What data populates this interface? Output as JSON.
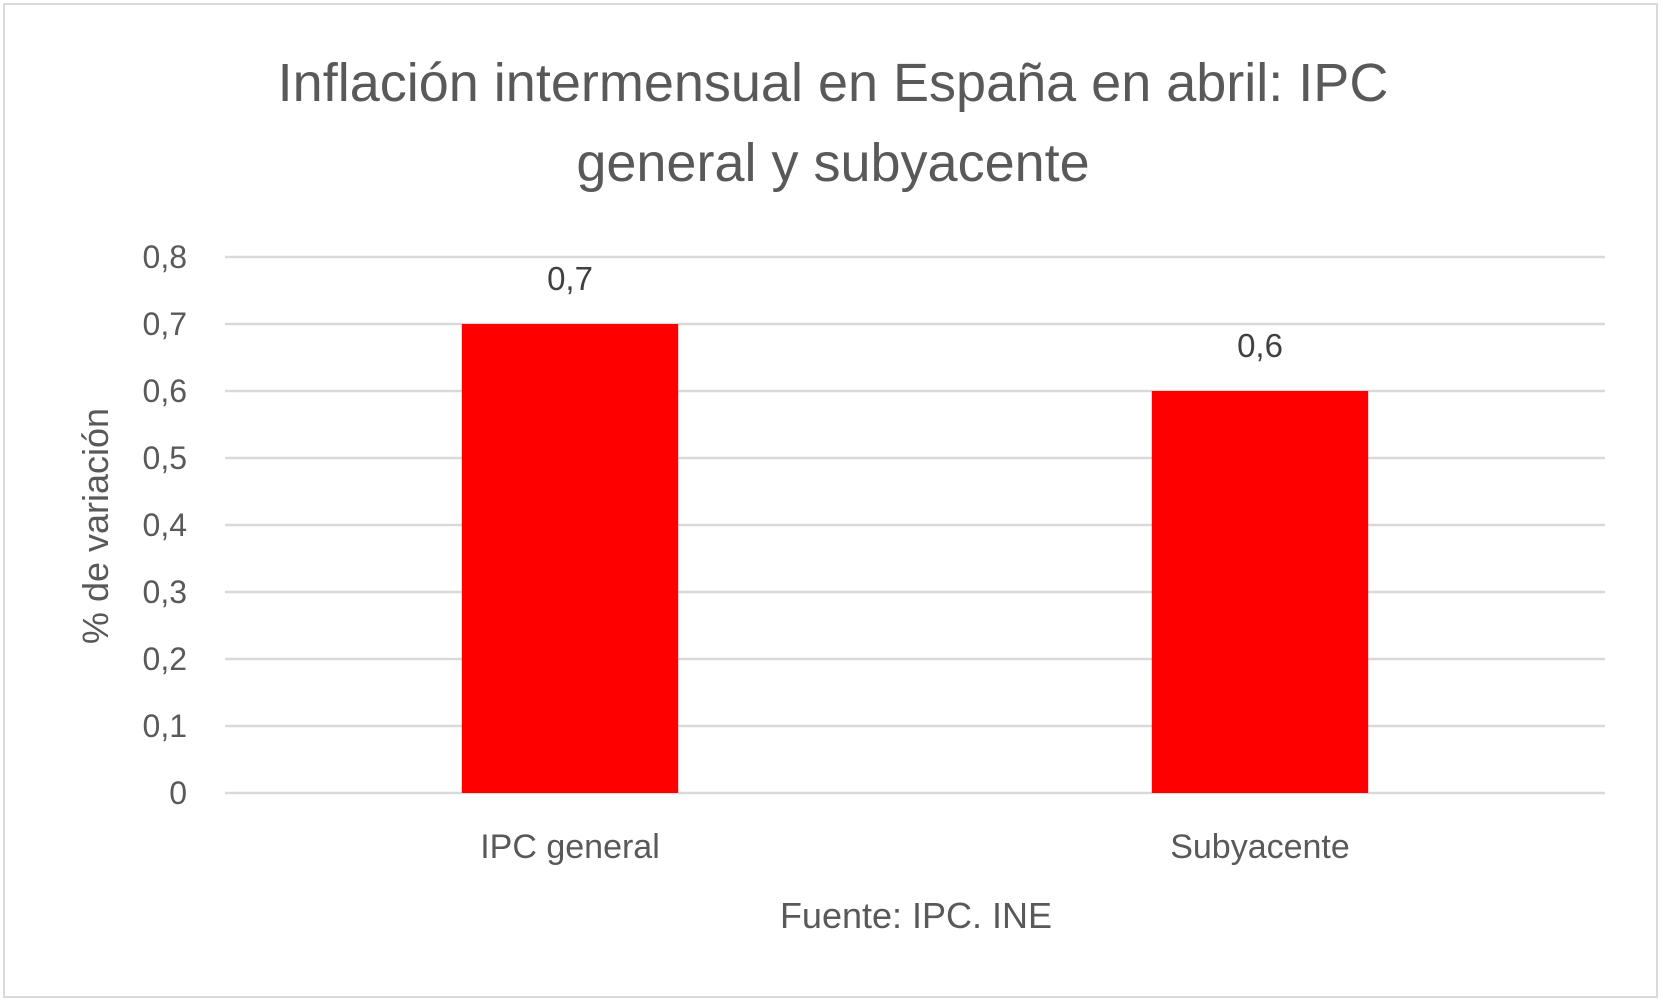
{
  "chart_data": {
    "type": "bar",
    "title_lines": [
      "Inflación intermensual en España en abril: IPC",
      "general y subyacente"
    ],
    "categories": [
      "IPC general",
      "Subyacente"
    ],
    "values": [
      0.7,
      0.6
    ],
    "data_labels": [
      "0,7",
      "0,6"
    ],
    "y_ticks": [
      "0",
      "0,1",
      "0,2",
      "0,3",
      "0,4",
      "0,5",
      "0,6",
      "0,7",
      "0,8"
    ],
    "ylim": [
      0,
      0.8
    ],
    "ylabel": "% de variación",
    "xlabel": "Fuente: IPC. INE",
    "grid": true,
    "legend": "none",
    "bar_color": "#ff0000"
  }
}
